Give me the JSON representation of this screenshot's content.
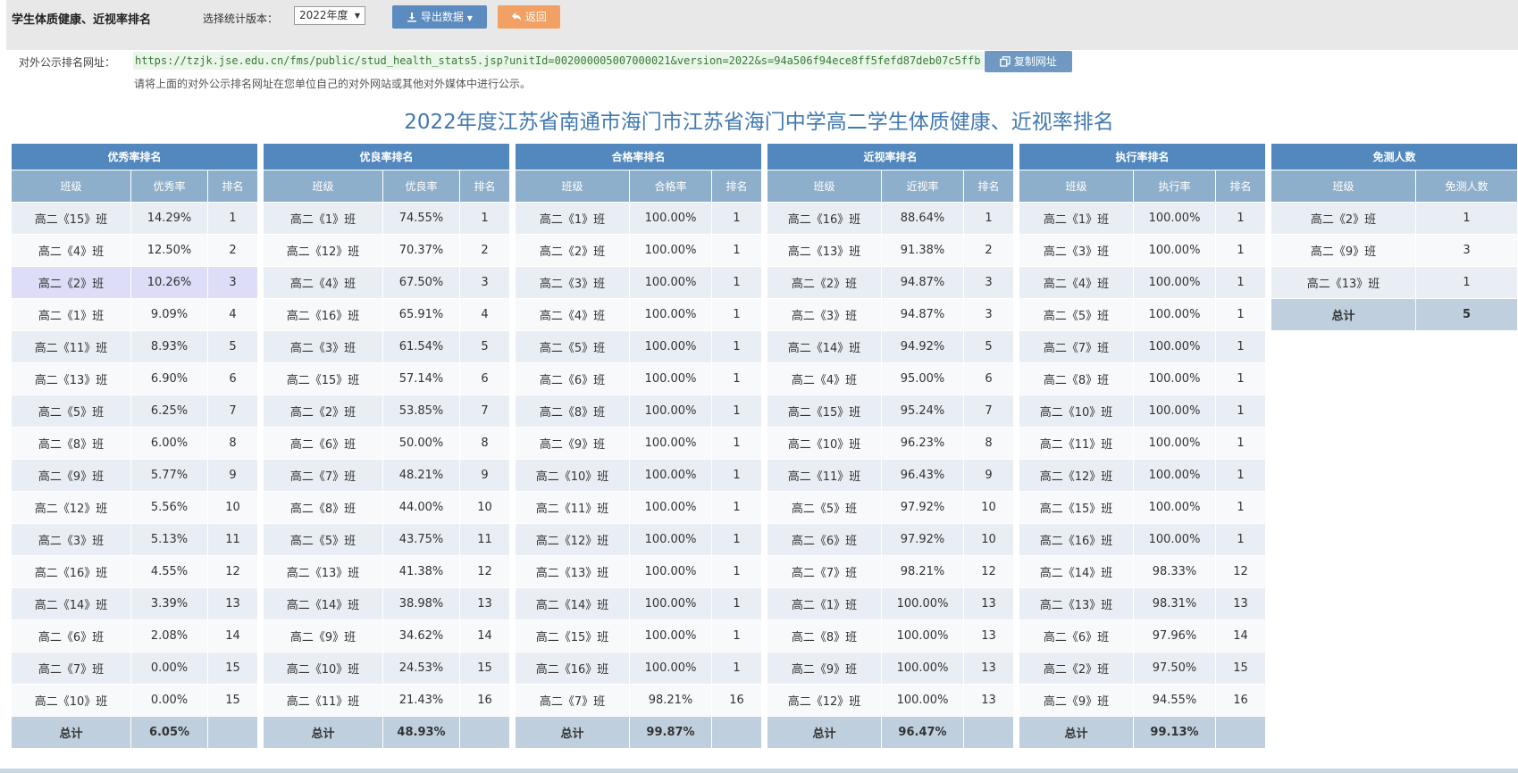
{
  "header": {
    "app_title": "学生体质健康、近视率排名",
    "version_label": "选择统计版本：",
    "version_value": "2022年度",
    "export_label": "导出数据",
    "back_label": "返回"
  },
  "public_url": {
    "label": "对外公示排名网址：",
    "url": "https://tzjk.jse.edu.cn/fms/public/stud_health_stats5.jsp?unitId=002000005007000021&version=2022&s=94a506f94ece8ff5fefd87deb07c5ffb",
    "copy_label": "复制网址",
    "note": "请将上面的对外公示排名网址在您单位自己的对外网站或其他对外媒体中进行公示。"
  },
  "page_title": "2022年度江苏省南通市海门市江苏省海门中学高二学生体质健康、近视率排名",
  "tables": [
    {
      "title": "优秀率排名",
      "headers": [
        "班级",
        "优秀率",
        "排名"
      ],
      "rows": [
        [
          "高二《15》班",
          "14.29%",
          "1"
        ],
        [
          "高二《4》班",
          "12.50%",
          "2"
        ],
        [
          "高二《2》班",
          "10.26%",
          "3"
        ],
        [
          "高二《1》班",
          "9.09%",
          "4"
        ],
        [
          "高二《11》班",
          "8.93%",
          "5"
        ],
        [
          "高二《13》班",
          "6.90%",
          "6"
        ],
        [
          "高二《5》班",
          "6.25%",
          "7"
        ],
        [
          "高二《8》班",
          "6.00%",
          "8"
        ],
        [
          "高二《9》班",
          "5.77%",
          "9"
        ],
        [
          "高二《12》班",
          "5.56%",
          "10"
        ],
        [
          "高二《3》班",
          "5.13%",
          "11"
        ],
        [
          "高二《16》班",
          "4.55%",
          "12"
        ],
        [
          "高二《14》班",
          "3.39%",
          "13"
        ],
        [
          "高二《6》班",
          "2.08%",
          "14"
        ],
        [
          "高二《7》班",
          "0.00%",
          "15"
        ],
        [
          "高二《10》班",
          "0.00%",
          "15"
        ]
      ],
      "total": [
        "总计",
        "6.05%",
        ""
      ]
    },
    {
      "title": "优良率排名",
      "headers": [
        "班级",
        "优良率",
        "排名"
      ],
      "rows": [
        [
          "高二《1》班",
          "74.55%",
          "1"
        ],
        [
          "高二《12》班",
          "70.37%",
          "2"
        ],
        [
          "高二《4》班",
          "67.50%",
          "3"
        ],
        [
          "高二《16》班",
          "65.91%",
          "4"
        ],
        [
          "高二《3》班",
          "61.54%",
          "5"
        ],
        [
          "高二《15》班",
          "57.14%",
          "6"
        ],
        [
          "高二《2》班",
          "53.85%",
          "7"
        ],
        [
          "高二《6》班",
          "50.00%",
          "8"
        ],
        [
          "高二《7》班",
          "48.21%",
          "9"
        ],
        [
          "高二《8》班",
          "44.00%",
          "10"
        ],
        [
          "高二《5》班",
          "43.75%",
          "11"
        ],
        [
          "高二《13》班",
          "41.38%",
          "12"
        ],
        [
          "高二《14》班",
          "38.98%",
          "13"
        ],
        [
          "高二《9》班",
          "34.62%",
          "14"
        ],
        [
          "高二《10》班",
          "24.53%",
          "15"
        ],
        [
          "高二《11》班",
          "21.43%",
          "16"
        ]
      ],
      "total": [
        "总计",
        "48.93%",
        ""
      ]
    },
    {
      "title": "合格率排名",
      "headers": [
        "班级",
        "合格率",
        "排名"
      ],
      "rows": [
        [
          "高二《1》班",
          "100.00%",
          "1"
        ],
        [
          "高二《2》班",
          "100.00%",
          "1"
        ],
        [
          "高二《3》班",
          "100.00%",
          "1"
        ],
        [
          "高二《4》班",
          "100.00%",
          "1"
        ],
        [
          "高二《5》班",
          "100.00%",
          "1"
        ],
        [
          "高二《6》班",
          "100.00%",
          "1"
        ],
        [
          "高二《8》班",
          "100.00%",
          "1"
        ],
        [
          "高二《9》班",
          "100.00%",
          "1"
        ],
        [
          "高二《10》班",
          "100.00%",
          "1"
        ],
        [
          "高二《11》班",
          "100.00%",
          "1"
        ],
        [
          "高二《12》班",
          "100.00%",
          "1"
        ],
        [
          "高二《13》班",
          "100.00%",
          "1"
        ],
        [
          "高二《14》班",
          "100.00%",
          "1"
        ],
        [
          "高二《15》班",
          "100.00%",
          "1"
        ],
        [
          "高二《16》班",
          "100.00%",
          "1"
        ],
        [
          "高二《7》班",
          "98.21%",
          "16"
        ]
      ],
      "total": [
        "总计",
        "99.87%",
        ""
      ]
    },
    {
      "title": "近视率排名",
      "headers": [
        "班级",
        "近视率",
        "排名"
      ],
      "rows": [
        [
          "高二《16》班",
          "88.64%",
          "1"
        ],
        [
          "高二《13》班",
          "91.38%",
          "2"
        ],
        [
          "高二《2》班",
          "94.87%",
          "3"
        ],
        [
          "高二《3》班",
          "94.87%",
          "3"
        ],
        [
          "高二《14》班",
          "94.92%",
          "5"
        ],
        [
          "高二《4》班",
          "95.00%",
          "6"
        ],
        [
          "高二《15》班",
          "95.24%",
          "7"
        ],
        [
          "高二《10》班",
          "96.23%",
          "8"
        ],
        [
          "高二《11》班",
          "96.43%",
          "9"
        ],
        [
          "高二《5》班",
          "97.92%",
          "10"
        ],
        [
          "高二《6》班",
          "97.92%",
          "10"
        ],
        [
          "高二《7》班",
          "98.21%",
          "12"
        ],
        [
          "高二《1》班",
          "100.00%",
          "13"
        ],
        [
          "高二《8》班",
          "100.00%",
          "13"
        ],
        [
          "高二《9》班",
          "100.00%",
          "13"
        ],
        [
          "高二《12》班",
          "100.00%",
          "13"
        ]
      ],
      "total": [
        "总计",
        "96.47%",
        ""
      ]
    },
    {
      "title": "执行率排名",
      "headers": [
        "班级",
        "执行率",
        "排名"
      ],
      "rows": [
        [
          "高二《1》班",
          "100.00%",
          "1"
        ],
        [
          "高二《3》班",
          "100.00%",
          "1"
        ],
        [
          "高二《4》班",
          "100.00%",
          "1"
        ],
        [
          "高二《5》班",
          "100.00%",
          "1"
        ],
        [
          "高二《7》班",
          "100.00%",
          "1"
        ],
        [
          "高二《8》班",
          "100.00%",
          "1"
        ],
        [
          "高二《10》班",
          "100.00%",
          "1"
        ],
        [
          "高二《11》班",
          "100.00%",
          "1"
        ],
        [
          "高二《12》班",
          "100.00%",
          "1"
        ],
        [
          "高二《15》班",
          "100.00%",
          "1"
        ],
        [
          "高二《16》班",
          "100.00%",
          "1"
        ],
        [
          "高二《14》班",
          "98.33%",
          "12"
        ],
        [
          "高二《13》班",
          "98.31%",
          "13"
        ],
        [
          "高二《6》班",
          "97.96%",
          "14"
        ],
        [
          "高二《2》班",
          "97.50%",
          "15"
        ],
        [
          "高二《9》班",
          "94.55%",
          "16"
        ]
      ],
      "total": [
        "总计",
        "99.13%",
        ""
      ]
    },
    {
      "title": "免测人数",
      "headers": [
        "班级",
        "免测人数"
      ],
      "rows": [
        [
          "高二《2》班",
          "1"
        ],
        [
          "高二《9》班",
          "3"
        ],
        [
          "高二《13》班",
          "1"
        ]
      ],
      "total": [
        "总计",
        "5"
      ]
    }
  ]
}
